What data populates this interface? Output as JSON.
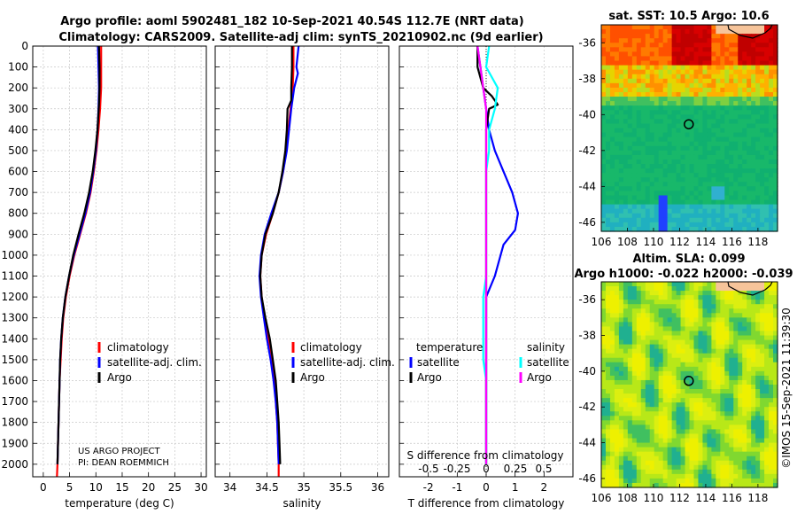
{
  "title": {
    "line1": "Argo profile: aoml 5902481_182 10-Sep-2021 40.54S 112.7E (NRT data)",
    "line2": "Climatology: CARS2009. Satellite-adj clim: synTS_20210902.nc (9d earlier)"
  },
  "watermark": "©IMOS 15-Sep-2021 11:39:30",
  "credit": {
    "line1": "US ARGO PROJECT",
    "line2": "PI: DEAN ROEMMICH"
  },
  "colors": {
    "climatology": "#ff0000",
    "satellite": "#0000ff",
    "argo": "#000000",
    "sat_sdiff": "#00ffff",
    "argo_sdiff": "#ff00ff"
  },
  "chart_data": [
    {
      "type": "line",
      "name": "temperature-profile",
      "xlabel": "temperature (deg C)",
      "xlim": [
        -2,
        31
      ],
      "ylim": [
        2060,
        0
      ],
      "xticks": [
        "0",
        "5",
        "10",
        "15",
        "20",
        "25",
        "30"
      ],
      "yticks": [
        "0",
        "100",
        "200",
        "300",
        "400",
        "500",
        "600",
        "700",
        "800",
        "900",
        "1000",
        "1100",
        "1200",
        "1300",
        "1400",
        "1500",
        "1600",
        "1700",
        "1800",
        "1900",
        "2000"
      ],
      "legend": [
        "climatology",
        "satellite-adj. clim.",
        "Argo"
      ],
      "series": [
        {
          "name": "climatology",
          "color": "#ff0000",
          "points": [
            [
              11,
              0
            ],
            [
              11,
              100
            ],
            [
              11,
              200
            ],
            [
              10.8,
              300
            ],
            [
              10.5,
              400
            ],
            [
              10.1,
              500
            ],
            [
              9.6,
              600
            ],
            [
              9,
              700
            ],
            [
              8.1,
              800
            ],
            [
              7,
              900
            ],
            [
              5.9,
              1000
            ],
            [
              5,
              1100
            ],
            [
              4.3,
              1200
            ],
            [
              3.8,
              1300
            ],
            [
              3.5,
              1400
            ],
            [
              3.3,
              1500
            ],
            [
              3.1,
              1600
            ],
            [
              3,
              1700
            ],
            [
              2.9,
              1800
            ],
            [
              2.8,
              1900
            ],
            [
              2.7,
              2000
            ],
            [
              2.6,
              2060
            ]
          ]
        },
        {
          "name": "satellite-adj. clim.",
          "color": "#0000ff",
          "points": [
            [
              10.4,
              0
            ],
            [
              10.5,
              100
            ],
            [
              10.6,
              200
            ],
            [
              10.5,
              300
            ],
            [
              10.3,
              400
            ],
            [
              10,
              500
            ],
            [
              9.5,
              600
            ],
            [
              8.9,
              700
            ],
            [
              8,
              800
            ],
            [
              6.9,
              900
            ],
            [
              5.8,
              1000
            ],
            [
              4.9,
              1100
            ],
            [
              4.2,
              1200
            ],
            [
              3.7,
              1300
            ],
            [
              3.4,
              1400
            ],
            [
              3.2,
              1500
            ],
            [
              3.1,
              1600
            ],
            [
              3,
              1700
            ],
            [
              2.9,
              1800
            ],
            [
              2.8,
              1900
            ],
            [
              2.7,
              2000
            ]
          ]
        },
        {
          "name": "Argo",
          "color": "#000000",
          "points": [
            [
              10.6,
              0
            ],
            [
              10.7,
              100
            ],
            [
              10.7,
              200
            ],
            [
              10.6,
              280
            ],
            [
              10.3,
              400
            ],
            [
              9.9,
              500
            ],
            [
              9.4,
              600
            ],
            [
              8.7,
              700
            ],
            [
              7.8,
              800
            ],
            [
              6.7,
              900
            ],
            [
              5.7,
              1000
            ],
            [
              4.9,
              1100
            ],
            [
              4.2,
              1200
            ],
            [
              3.7,
              1300
            ],
            [
              3.4,
              1400
            ],
            [
              3.2,
              1500
            ],
            [
              3.1,
              1600
            ],
            [
              3,
              1700
            ],
            [
              2.9,
              1800
            ],
            [
              2.8,
              1900
            ],
            [
              2.7,
              2000
            ]
          ]
        }
      ]
    },
    {
      "type": "line",
      "name": "salinity-profile",
      "xlabel": "salinity",
      "xlim": [
        33.8,
        36.15
      ],
      "ylim": [
        2060,
        0
      ],
      "xticks": [
        "34",
        "34.5",
        "35",
        "35.5",
        "36"
      ],
      "legend": [
        "climatology",
        "satellite-adj. clim.",
        "Argo"
      ],
      "series": [
        {
          "name": "climatology",
          "color": "#ff0000",
          "points": [
            [
              34.86,
              0
            ],
            [
              34.86,
              100
            ],
            [
              34.85,
              200
            ],
            [
              34.82,
              300
            ],
            [
              34.79,
              400
            ],
            [
              34.76,
              500
            ],
            [
              34.72,
              600
            ],
            [
              34.66,
              700
            ],
            [
              34.58,
              800
            ],
            [
              34.49,
              900
            ],
            [
              34.43,
              1000
            ],
            [
              34.41,
              1100
            ],
            [
              34.43,
              1200
            ],
            [
              34.47,
              1300
            ],
            [
              34.52,
              1400
            ],
            [
              34.56,
              1500
            ],
            [
              34.6,
              1600
            ],
            [
              34.62,
              1700
            ],
            [
              34.64,
              1800
            ],
            [
              34.65,
              1900
            ],
            [
              34.66,
              2000
            ],
            [
              34.66,
              2060
            ]
          ]
        },
        {
          "name": "satellite-adj. clim.",
          "color": "#0000ff",
          "points": [
            [
              34.93,
              0
            ],
            [
              34.9,
              100
            ],
            [
              34.92,
              130
            ],
            [
              34.87,
              200
            ],
            [
              34.83,
              300
            ],
            [
              34.8,
              400
            ],
            [
              34.77,
              500
            ],
            [
              34.72,
              600
            ],
            [
              34.66,
              700
            ],
            [
              34.56,
              800
            ],
            [
              34.47,
              900
            ],
            [
              34.42,
              1000
            ],
            [
              34.4,
              1100
            ],
            [
              34.42,
              1200
            ],
            [
              34.46,
              1300
            ],
            [
              34.5,
              1400
            ],
            [
              34.55,
              1500
            ],
            [
              34.59,
              1600
            ],
            [
              34.62,
              1700
            ],
            [
              34.64,
              1800
            ],
            [
              34.65,
              1900
            ],
            [
              34.66,
              2000
            ]
          ]
        },
        {
          "name": "Argo",
          "color": "#000000",
          "points": [
            [
              34.84,
              0
            ],
            [
              34.84,
              100
            ],
            [
              34.83,
              200
            ],
            [
              34.83,
              260
            ],
            [
              34.78,
              300
            ],
            [
              34.77,
              400
            ],
            [
              34.75,
              500
            ],
            [
              34.71,
              600
            ],
            [
              34.66,
              700
            ],
            [
              34.58,
              800
            ],
            [
              34.48,
              900
            ],
            [
              34.43,
              1000
            ],
            [
              34.41,
              1100
            ],
            [
              34.43,
              1200
            ],
            [
              34.48,
              1300
            ],
            [
              34.54,
              1400
            ],
            [
              34.58,
              1500
            ],
            [
              34.62,
              1600
            ],
            [
              34.64,
              1700
            ],
            [
              34.66,
              1800
            ],
            [
              34.67,
              1900
            ],
            [
              34.68,
              2000
            ]
          ]
        }
      ]
    },
    {
      "type": "line",
      "name": "difference-profile",
      "xlabel": "T difference from climatology",
      "xlabel_top": "S difference from climatology",
      "xlim": [
        -3,
        3
      ],
      "ylim": [
        2060,
        0
      ],
      "xticks": [
        "-2",
        "-1",
        "0",
        "1",
        "2"
      ],
      "xticks_top": [
        "-0.5",
        "-0.25",
        "0",
        "0.25",
        "0.5"
      ],
      "legend_left_title": "temperature",
      "legend_left": [
        "satellite",
        "Argo"
      ],
      "legend_right_title": "salinity",
      "legend_right": [
        "satellite",
        "Argo"
      ],
      "series": [
        {
          "name": "temperature satellite",
          "color": "#0000ff",
          "points": [
            [
              -0.3,
              0
            ],
            [
              -0.2,
              100
            ],
            [
              -0.1,
              200
            ],
            [
              0,
              300
            ],
            [
              0.1,
              400
            ],
            [
              0.3,
              500
            ],
            [
              0.6,
              600
            ],
            [
              0.9,
              700
            ],
            [
              1.1,
              800
            ],
            [
              1,
              880
            ],
            [
              0.6,
              950
            ],
            [
              0.5,
              1000
            ],
            [
              0.3,
              1100
            ],
            [
              0,
              1200
            ],
            [
              0,
              1300
            ],
            [
              0,
              1400
            ],
            [
              0,
              1500
            ],
            [
              0,
              1600
            ],
            [
              0,
              1700
            ],
            [
              0,
              1800
            ],
            [
              0,
              1900
            ],
            [
              0,
              2000
            ]
          ]
        },
        {
          "name": "temperature Argo",
          "color": "#000000",
          "points": [
            [
              -0.3,
              0
            ],
            [
              -0.3,
              100
            ],
            [
              -0.1,
              200
            ],
            [
              0.2,
              240
            ],
            [
              0.4,
              280
            ],
            [
              0.1,
              300
            ],
            [
              0,
              400
            ],
            [
              0,
              500
            ],
            [
              0,
              600
            ],
            [
              0,
              700
            ],
            [
              0,
              800
            ],
            [
              0,
              900
            ],
            [
              0,
              1000
            ],
            [
              0,
              1100
            ],
            [
              0,
              1200
            ],
            [
              0,
              1300
            ],
            [
              0,
              1400
            ],
            [
              0,
              1500
            ],
            [
              0,
              1600
            ],
            [
              0,
              1700
            ],
            [
              0,
              1800
            ],
            [
              0,
              1900
            ],
            [
              0,
              2000
            ]
          ]
        },
        {
          "name": "salinity satellite",
          "color": "#00ffff",
          "points": [
            [
              0.1,
              0
            ],
            [
              0,
              100
            ],
            [
              0.4,
              200
            ],
            [
              0.3,
              300
            ],
            [
              0.1,
              400
            ],
            [
              0.1,
              500
            ],
            [
              0,
              600
            ],
            [
              0,
              700
            ],
            [
              0,
              800
            ],
            [
              0,
              900
            ],
            [
              0,
              1000
            ],
            [
              0,
              1100
            ],
            [
              -0.1,
              1200
            ],
            [
              -0.1,
              1300
            ],
            [
              -0.1,
              1400
            ],
            [
              -0.1,
              1500
            ],
            [
              0,
              1600
            ],
            [
              0,
              1700
            ],
            [
              0,
              1800
            ],
            [
              0,
              1900
            ],
            [
              0,
              2000
            ]
          ]
        },
        {
          "name": "salinity Argo",
          "color": "#ff00ff",
          "points": [
            [
              -0.3,
              0
            ],
            [
              -0.2,
              100
            ],
            [
              -0.1,
              200
            ],
            [
              0,
              300
            ],
            [
              0,
              400
            ],
            [
              0,
              500
            ],
            [
              0,
              600
            ],
            [
              0,
              700
            ],
            [
              0,
              800
            ],
            [
              0,
              900
            ],
            [
              0,
              1000
            ],
            [
              0,
              1100
            ],
            [
              0,
              1200
            ],
            [
              0,
              1300
            ],
            [
              0,
              1400
            ],
            [
              0,
              1500
            ],
            [
              0,
              1600
            ],
            [
              0,
              1700
            ],
            [
              0,
              1800
            ],
            [
              0,
              1900
            ],
            [
              0,
              2000
            ]
          ]
        }
      ]
    },
    {
      "type": "heatmap",
      "name": "sst-map",
      "title": "sat. SST: 10.5 Argo: 10.6",
      "xlim": [
        106,
        119.5
      ],
      "ylim": [
        -46.5,
        -35
      ],
      "xticks": [
        "106",
        "108",
        "110",
        "112",
        "114",
        "116",
        "118"
      ],
      "yticks": [
        "-36",
        "-38",
        "-40",
        "-42",
        "-44",
        "-46"
      ],
      "float_position": [
        112.7,
        -40.54
      ]
    },
    {
      "type": "heatmap",
      "name": "sla-map",
      "title": "Altim. SLA: 0.099",
      "subtitle": "Argo h1000: -0.022 h2000: -0.039",
      "xlim": [
        106,
        119.5
      ],
      "ylim": [
        -46.5,
        -35
      ],
      "xticks": [
        "106",
        "108",
        "110",
        "112",
        "114",
        "116",
        "118"
      ],
      "yticks": [
        "-36",
        "-38",
        "-40",
        "-42",
        "-44",
        "-46"
      ],
      "float_position": [
        112.7,
        -40.54
      ]
    }
  ]
}
